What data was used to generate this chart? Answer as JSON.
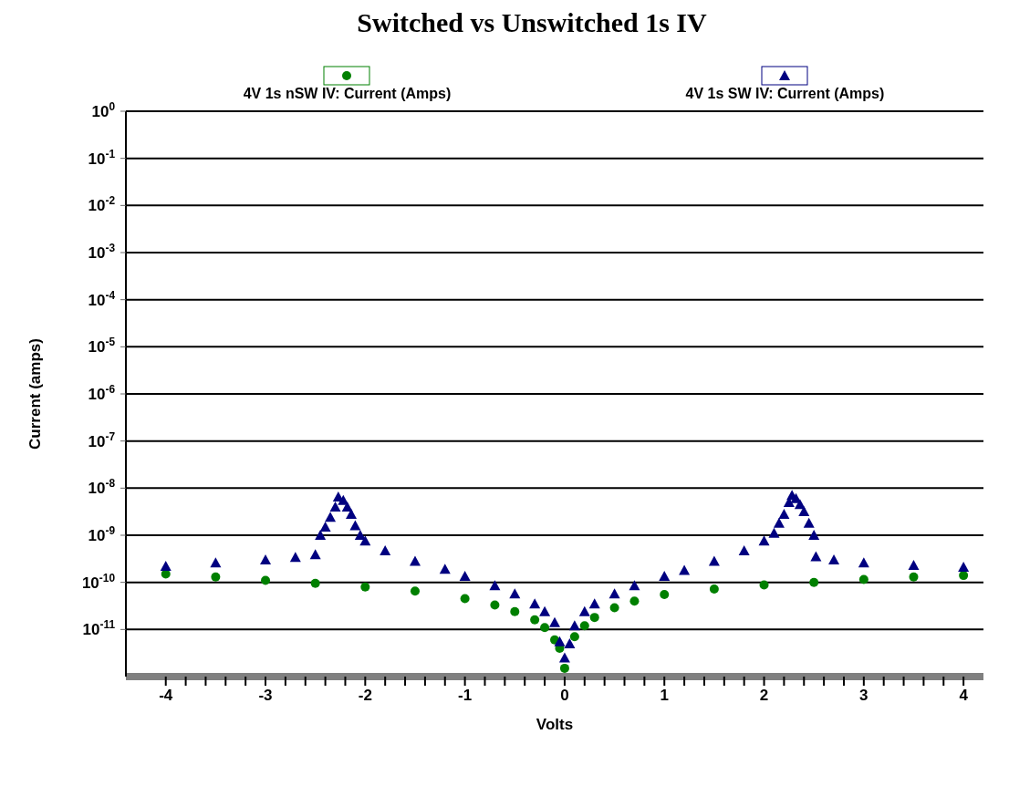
{
  "chart_data": {
    "type": "scatter",
    "title": "Switched vs Unswitched 1s IV",
    "xlabel": "Volts",
    "ylabel": "Current (amps)",
    "log": "y",
    "grid": "y",
    "legend": "top",
    "xlim": [
      -4.4,
      4.2
    ],
    "ylim": [
      1e-12,
      1
    ],
    "xticks": [
      -4,
      {
        "value": -3.8,
        "label": null
      },
      {
        "value": -3.6,
        "label": null
      },
      {
        "value": -3.4,
        "label": null
      },
      {
        "value": -3.2,
        "label": null
      },
      -3,
      {
        "value": -2.8,
        "label": null
      },
      {
        "value": -2.6,
        "label": null
      },
      {
        "value": -2.4,
        "label": null
      },
      {
        "value": -2.2,
        "label": null
      },
      -2,
      {
        "value": -1.8,
        "label": null
      },
      {
        "value": -1.6,
        "label": null
      },
      {
        "value": -1.4,
        "label": null
      },
      {
        "value": -1.2,
        "label": null
      },
      -1,
      {
        "value": -0.8,
        "label": null
      },
      {
        "value": -0.6,
        "label": null
      },
      {
        "value": -0.4,
        "label": null
      },
      {
        "value": -0.2,
        "label": null
      },
      0,
      {
        "value": 0.2,
        "label": null
      },
      {
        "value": 0.4,
        "label": null
      },
      {
        "value": 0.6,
        "label": null
      },
      {
        "value": 0.8,
        "label": null
      },
      1,
      {
        "value": 1.2,
        "label": null
      },
      {
        "value": 1.4,
        "label": null
      },
      {
        "value": 1.6,
        "label": null
      },
      {
        "value": 1.8,
        "label": null
      },
      2,
      {
        "value": 2.2,
        "label": null
      },
      {
        "value": 2.4,
        "label": null
      },
      {
        "value": 2.6,
        "label": null
      },
      {
        "value": 2.8,
        "label": null
      },
      3,
      {
        "value": 3.2,
        "label": null
      },
      {
        "value": 3.4,
        "label": null
      },
      {
        "value": 3.6,
        "label": null
      },
      {
        "value": 3.8,
        "label": null
      },
      4
    ],
    "yticks": [
      {
        "value": 1,
        "label": "10$^{0}$"
      },
      {
        "value": 0.1,
        "label": "10$^{-1}$"
      },
      {
        "value": 0.01,
        "label": "10$^{-2}$"
      },
      {
        "value": 0.001,
        "label": "10$^{-3}$"
      },
      {
        "value": 0.0001,
        "label": "10$^{-4}$"
      },
      {
        "value": 1e-05,
        "label": "10$^{-5}$"
      },
      {
        "value": 1e-06,
        "label": "10$^{-6}$"
      },
      {
        "value": 1e-07,
        "label": "10$^{-7}$"
      },
      {
        "value": 1e-08,
        "label": "10$^{-8}$"
      },
      {
        "value": 1e-09,
        "label": "10$^{-9}$"
      },
      {
        "value": 1e-10,
        "label": "10$^{-10}$"
      },
      {
        "value": 1e-11,
        "label": "10$^{-11}$"
      }
    ],
    "series": [
      {
        "name": "4V 1s nSW IV: Current (Amps)",
        "color": "#008000",
        "marker": "circle",
        "x": [
          -4,
          -3.5,
          -3,
          -2.5,
          -2,
          -1.5,
          -1,
          -0.7,
          -0.5,
          -0.3,
          -0.2,
          -0.1,
          -0.05,
          0,
          0.05,
          0.1,
          0.2,
          0.3,
          0.5,
          0.7,
          1,
          1.5,
          2,
          2.5,
          3,
          3.5,
          4
        ],
        "values": [
          1.5e-10,
          1.3e-10,
          1.1e-10,
          9.5e-11,
          8e-11,
          6.5e-11,
          4.5e-11,
          3.3e-11,
          2.4e-11,
          1.6e-11,
          1.1e-11,
          6e-12,
          4e-12,
          1.5e-12,
          null,
          7e-12,
          1.2e-11,
          1.8e-11,
          2.9e-11,
          4e-11,
          5.5e-11,
          7.2e-11,
          8.8e-11,
          1e-10,
          1.15e-10,
          1.3e-10,
          1.4e-10
        ]
      },
      {
        "name": "4V 1s SW IV: Current (Amps)",
        "color": "#000080",
        "marker": "triangle",
        "x": [
          -4,
          -3.5,
          -3,
          -2.7,
          -2.5,
          -2.45,
          -2.4,
          -2.35,
          -2.3,
          -2.27,
          -2.22,
          -2.18,
          -2.14,
          -2.1,
          -2.05,
          -2,
          -1.8,
          -1.5,
          -1.2,
          -1,
          -0.7,
          -0.5,
          -0.3,
          -0.2,
          -0.1,
          -0.05,
          0,
          0.05,
          0.1,
          0.2,
          0.3,
          0.5,
          0.7,
          1,
          1.2,
          1.5,
          1.8,
          2,
          2.1,
          2.15,
          2.2,
          2.25,
          2.28,
          2.32,
          2.36,
          2.4,
          2.45,
          2.5,
          2.52,
          2.7,
          3,
          3.5,
          4
        ],
        "values": [
          2.2e-10,
          2.6e-10,
          3e-10,
          3.4e-10,
          3.9e-10,
          1e-09,
          1.5e-09,
          2.4e-09,
          4e-09,
          6.5e-09,
          5.5e-09,
          4e-09,
          2.8e-09,
          1.6e-09,
          1e-09,
          7.6e-10,
          4.7e-10,
          2.8e-10,
          1.9e-10,
          1.35e-10,
          8.5e-11,
          5.7e-11,
          3.5e-11,
          2.4e-11,
          1.4e-11,
          5.5e-12,
          2.5e-12,
          5e-12,
          1.2e-11,
          2.4e-11,
          3.5e-11,
          5.7e-11,
          8.5e-11,
          1.35e-10,
          1.8e-10,
          2.8e-10,
          4.7e-10,
          7.6e-10,
          1.1e-09,
          1.8e-09,
          2.8e-09,
          5e-09,
          7e-09,
          6e-09,
          4.5e-09,
          3.2e-09,
          1.8e-09,
          1e-09,
          3.5e-10,
          3e-10,
          2.6e-10,
          2.3e-10,
          2.1e-10
        ]
      }
    ]
  }
}
